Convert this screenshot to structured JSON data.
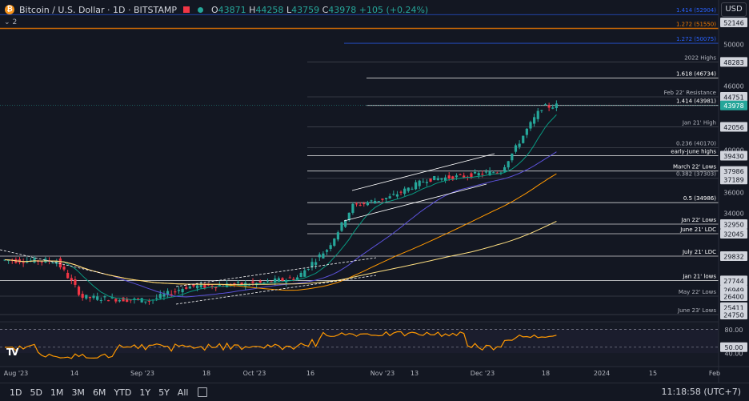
{
  "symbol": {
    "title": "Bitcoin / U.S. Dollar · 1D · BITSTAMP",
    "ohlc": [
      {
        "k": "O",
        "v": "43871"
      },
      {
        "k": "H",
        "v": "44258"
      },
      {
        "k": "L",
        "v": "43759"
      },
      {
        "k": "C",
        "v": "43978"
      }
    ],
    "change": "+105 (+0.24%)",
    "indicator_count": "2"
  },
  "currency": "USD",
  "colors": {
    "bg": "#131722",
    "up": "#26a69a",
    "down": "#f23645",
    "ma_fast": "#089981",
    "ma_mid": "#5b51d8",
    "ma_slow": "#ff9800",
    "ma_long": "#ffe082",
    "rsi": "#ff9800",
    "fib_blue": "#2962ff",
    "fib_orange": "#f57c00"
  },
  "price_axis": {
    "ticks": [
      "52146",
      "50000",
      "48283",
      "46000",
      "44751",
      "42056",
      "40000",
      "39430",
      "37986",
      "37189",
      "36000",
      "34000",
      "32950",
      "32045",
      "29832",
      "27744",
      "26949",
      "26400",
      "25411",
      "24750"
    ],
    "current": "43978"
  },
  "rsi_axis": [
    "80.00",
    "50.00",
    "40.00"
  ],
  "level_labels": [
    {
      "text": "1.414 (52904)",
      "price": 52904,
      "color": "#2962ff"
    },
    {
      "text": "1.272 (51550)",
      "price": 51550,
      "color": "#f57c00"
    },
    {
      "text": "1.272 (50075)",
      "price": 50075,
      "color": "#2962ff"
    },
    {
      "text": "2022 Highs",
      "price": 48283,
      "color": "#b2b5be"
    },
    {
      "text": "1.618 (46734)",
      "price": 46734,
      "color": "#ffffff"
    },
    {
      "text": "Feb 22' Resistance",
      "price": 44751,
      "color": "#b2b5be"
    },
    {
      "text": "1.414 (43981)",
      "price": 43981,
      "color": "#ffffff"
    },
    {
      "text": "Jan 21' High",
      "price": 42056,
      "color": "#b2b5be"
    },
    {
      "text": "0.236 (40170)",
      "price": 40170,
      "color": "#b2b5be"
    },
    {
      "text": "early-June highs",
      "price": 39430,
      "color": "#ffffff"
    },
    {
      "text": "March 22' Lows",
      "price": 37986,
      "color": "#ffffff"
    },
    {
      "text": "0.382 (37303)",
      "price": 37303,
      "color": "#b2b5be"
    },
    {
      "text": "0.5 (34986)",
      "price": 34986,
      "color": "#ffffff"
    },
    {
      "text": "Jan 22' Lows",
      "price": 32950,
      "color": "#ffffff"
    },
    {
      "text": "June 21' LDC",
      "price": 32045,
      "color": "#ffffff"
    },
    {
      "text": "July 21' LDC",
      "price": 29832,
      "color": "#ffffff"
    },
    {
      "text": "Jan 21' lows",
      "price": 27744,
      "color": "#ffffff"
    },
    {
      "text": "May 22' Lows",
      "price": 26400,
      "color": "#b2b5be"
    },
    {
      "text": "June 23' Lows",
      "price": 24750,
      "color": "#b2b5be"
    }
  ],
  "time_axis": [
    "Aug '23",
    "14",
    "Sep '23",
    "18",
    "Oct '23",
    "16",
    "Nov '23",
    "13",
    "Dec '23",
    "18",
    "2024",
    "15",
    "Feb"
  ],
  "timeframes": [
    "1D",
    "5D",
    "1M",
    "3M",
    "6M",
    "YTD",
    "1Y",
    "5Y",
    "All"
  ],
  "clock": "11:18:58 (UTC+7)",
  "chart_data": {
    "type": "candlestick",
    "close_start": 29500,
    "close_end": 43978,
    "ylim": [
      24750,
      53000
    ],
    "rsi_levels": [
      80,
      50,
      40
    ]
  }
}
